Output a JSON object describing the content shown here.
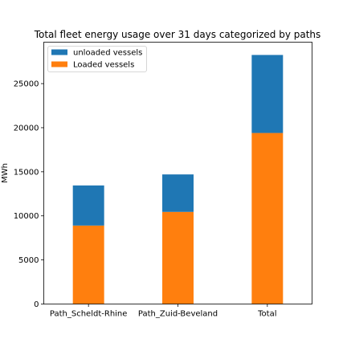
{
  "chart_data": {
    "type": "bar",
    "stacked": true,
    "title": "Total fleet energy usage over 31 days categorized by paths",
    "xlabel": "",
    "ylabel": "MWh",
    "categories": [
      "Path_Scheldt-Rhine",
      "Path_Zuid-Beveland",
      "Total"
    ],
    "series": [
      {
        "name": "Loaded vessels",
        "color": "#ff7f0e",
        "values": [
          8900,
          10450,
          19400
        ]
      },
      {
        "name": "unloaded vessels",
        "color": "#1f77b4",
        "values": [
          4550,
          4250,
          8850
        ]
      }
    ],
    "ylim": [
      0,
      29700
    ],
    "yticks": [
      0,
      5000,
      10000,
      15000,
      20000,
      25000
    ],
    "grid": false,
    "legend": {
      "placement": "upper-left",
      "entries": [
        {
          "label": "unloaded vessels",
          "color": "#1f77b4"
        },
        {
          "label": "Loaded vessels",
          "color": "#ff7f0e"
        }
      ]
    }
  }
}
